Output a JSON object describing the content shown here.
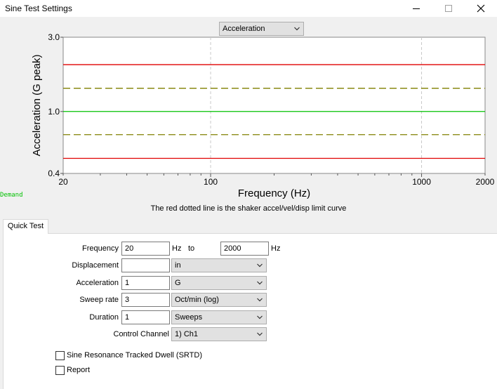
{
  "window": {
    "title": "Sine Test Settings",
    "minimize_icon": "minimize-icon",
    "maximize_icon": "maximize-icon",
    "close_icon": "close-icon"
  },
  "plot_selector": {
    "value": "Acceleration"
  },
  "chart_data": {
    "type": "line",
    "x_scale": "log",
    "y_scale": "log",
    "xlim": [
      20,
      2000
    ],
    "ylim": [
      0.4,
      3.0
    ],
    "xlabel": "Frequency (Hz)",
    "ylabel": "Acceleration (G peak)",
    "x_ticks": [
      "20",
      "100",
      "1000",
      "2000"
    ],
    "y_ticks": [
      "0.4",
      "1.0",
      "3.0"
    ],
    "grid": "vertical dashed at 100 and 1000",
    "series": [
      {
        "color": "#00c000",
        "style": "solid",
        "x": [
          20,
          2000
        ],
        "y": [
          1.0,
          1.0
        ]
      },
      {
        "color": "#808000",
        "style": "dashed",
        "x": [
          20,
          2000
        ],
        "y": [
          1.41,
          1.41
        ]
      },
      {
        "color": "#808000",
        "style": "dashed",
        "x": [
          20,
          2000
        ],
        "y": [
          0.71,
          0.71
        ]
      },
      {
        "color": "#e00000",
        "style": "solid",
        "x": [
          20,
          2000
        ],
        "y": [
          2.0,
          2.0
        ]
      },
      {
        "color": "#e00000",
        "style": "solid",
        "x": [
          20,
          2000
        ],
        "y": [
          0.5,
          0.5
        ]
      }
    ],
    "legend_text": "Demand",
    "legend_color": "#00c000"
  },
  "note": "The red dotted line is the shaker accel/vel/disp limit curve",
  "tabs": [
    {
      "label": "Quick Test"
    }
  ],
  "form": {
    "frequency": {
      "label": "Frequency",
      "from": "20",
      "unit1": "Hz",
      "to_label": "to",
      "to": "2000",
      "unit2": "Hz"
    },
    "displacement": {
      "label": "Displacement",
      "value": "",
      "unit": "in"
    },
    "acceleration": {
      "label": "Acceleration",
      "value": "1",
      "unit": "G"
    },
    "sweep_rate": {
      "label": "Sweep rate",
      "value": "3",
      "unit": "Oct/min (log)"
    },
    "duration": {
      "label": "Duration",
      "value": "1",
      "unit": "Sweeps"
    },
    "control_channel": {
      "label": "Control Channel",
      "value": "1) Ch1"
    },
    "srtd": {
      "label": "Sine Resonance Tracked Dwell (SRTD)",
      "checked": false
    },
    "report": {
      "label": "Report",
      "checked": false
    }
  }
}
